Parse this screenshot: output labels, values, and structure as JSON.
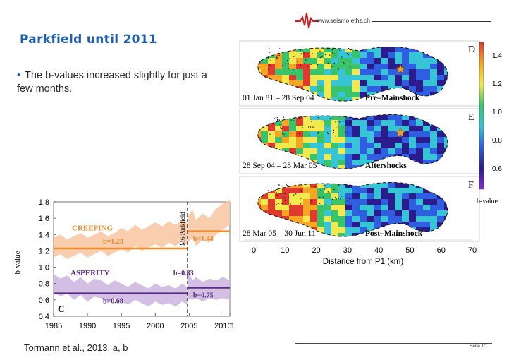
{
  "slide": {
    "title": "Parkfield until 2011",
    "bullet": "The b-values increased slightly  for just a few months.",
    "logo_text": "www.seismo.ethz.ch",
    "citation": "Tormann et al., 2013, a, b",
    "page_label": "Seite 10"
  },
  "map_figure": {
    "panels": [
      {
        "letter": "D",
        "date_label": "01 Jan 81 – 28 Sep 04",
        "phase_label": "Pre–Mainshock",
        "has_star": true
      },
      {
        "letter": "E",
        "date_label": "28 Sep 04 – 28 Mar 05",
        "phase_label": "Aftershocks",
        "has_star": true
      },
      {
        "letter": "F",
        "date_label": "28 Mar 05 – 30 Jun 11",
        "phase_label": "Post–Mainshock",
        "has_star": false
      }
    ],
    "colorbar": {
      "ticks": [
        "1.4",
        "1.2",
        "1.0",
        "0.8",
        "0.6"
      ],
      "label": "b-value",
      "colors": [
        "#e03a2f",
        "#f5a623",
        "#f2e94e",
        "#39c46b",
        "#37c4d6",
        "#2f5fe0",
        "#2a1c8c",
        "#8a2be2"
      ]
    },
    "x_axis": {
      "ticks": [
        "0",
        "10",
        "20",
        "30",
        "40",
        "50",
        "60",
        "70"
      ],
      "label": "Distance from P1 (km)"
    }
  },
  "chart_data": {
    "type": "line",
    "panel_letter": "C",
    "ylabel": "b-value",
    "xlim": [
      1985,
      2011
    ],
    "ylim": [
      0.4,
      1.8
    ],
    "x_ticks": [
      "1985",
      "1990",
      "1995",
      "2000",
      "2005",
      "2010",
      "1"
    ],
    "y_ticks": [
      "1.8",
      "1.6",
      "1.4",
      "1.2",
      "1.0",
      "0.8",
      "0.6",
      "0.4"
    ],
    "mainshock_label": "M6 Parkfield",
    "mainshock_year": 2004.75,
    "creeping": {
      "label": "CREEPING",
      "color": "#f08a2a",
      "band_color": "#f7c9a6",
      "x": [
        1985,
        1986,
        1987,
        1988,
        1989,
        1990,
        1991,
        1992,
        1993,
        1994,
        1995,
        1996,
        1997,
        1998,
        1999,
        2000,
        2001,
        2002,
        2003,
        2004,
        2004.7
      ],
      "upper": [
        1.36,
        1.4,
        1.34,
        1.38,
        1.42,
        1.36,
        1.4,
        1.44,
        1.38,
        1.42,
        1.48,
        1.44,
        1.52,
        1.46,
        1.5,
        1.55,
        1.5,
        1.56,
        1.52,
        1.58,
        1.54
      ],
      "lower": [
        1.12,
        1.16,
        1.1,
        1.14,
        1.18,
        1.12,
        1.16,
        1.2,
        1.14,
        1.18,
        1.22,
        1.18,
        1.26,
        1.2,
        1.24,
        1.28,
        1.24,
        1.3,
        1.26,
        1.32,
        1.28
      ],
      "post_x": [
        2004.8,
        2005.5,
        2006,
        2007,
        2008,
        2009,
        2010,
        2011
      ],
      "post_upper": [
        1.62,
        1.7,
        1.58,
        1.66,
        1.6,
        1.72,
        1.78,
        1.82
      ],
      "post_lower": [
        1.3,
        1.36,
        1.26,
        1.34,
        1.3,
        1.4,
        1.46,
        1.52
      ],
      "mean_pre": {
        "label": "b=1.23",
        "value": 1.23
      },
      "mean_post": {
        "label": "b=1.44",
        "value": 1.44
      }
    },
    "asperity": {
      "label": "ASPERITY",
      "color": "#5a2c86",
      "band_color": "#cdb8e0",
      "x": [
        1985,
        1986,
        1987,
        1988,
        1989,
        1990,
        1991,
        1992,
        1993,
        1994,
        1995,
        1996,
        1997,
        1998,
        1999,
        2000,
        2001,
        2002,
        2003,
        2004,
        2004.7
      ],
      "upper": [
        0.92,
        0.86,
        0.9,
        0.82,
        0.88,
        0.8,
        0.86,
        0.84,
        0.78,
        0.84,
        0.8,
        0.76,
        0.82,
        0.78,
        0.74,
        0.8,
        0.76,
        0.78,
        0.74,
        0.8,
        0.76
      ],
      "lower": [
        0.7,
        0.64,
        0.68,
        0.6,
        0.66,
        0.58,
        0.64,
        0.62,
        0.56,
        0.62,
        0.58,
        0.54,
        0.6,
        0.56,
        0.52,
        0.58,
        0.54,
        0.56,
        0.52,
        0.58,
        0.54
      ],
      "post_x": [
        2004.8,
        2005.5,
        2006,
        2007,
        2008,
        2009,
        2010,
        2011
      ],
      "post_upper": [
        0.96,
        0.84,
        0.88,
        0.82,
        0.86,
        0.84,
        0.88,
        0.84
      ],
      "post_lower": [
        0.62,
        0.6,
        0.62,
        0.58,
        0.62,
        0.6,
        0.62,
        0.6
      ],
      "mean_pre": {
        "label": "b=0.68",
        "value": 0.68
      },
      "mean_post": {
        "label": "b=0.75",
        "value": 0.75
      },
      "jump_label": "b=0.83",
      "jump_value": 0.83
    }
  }
}
